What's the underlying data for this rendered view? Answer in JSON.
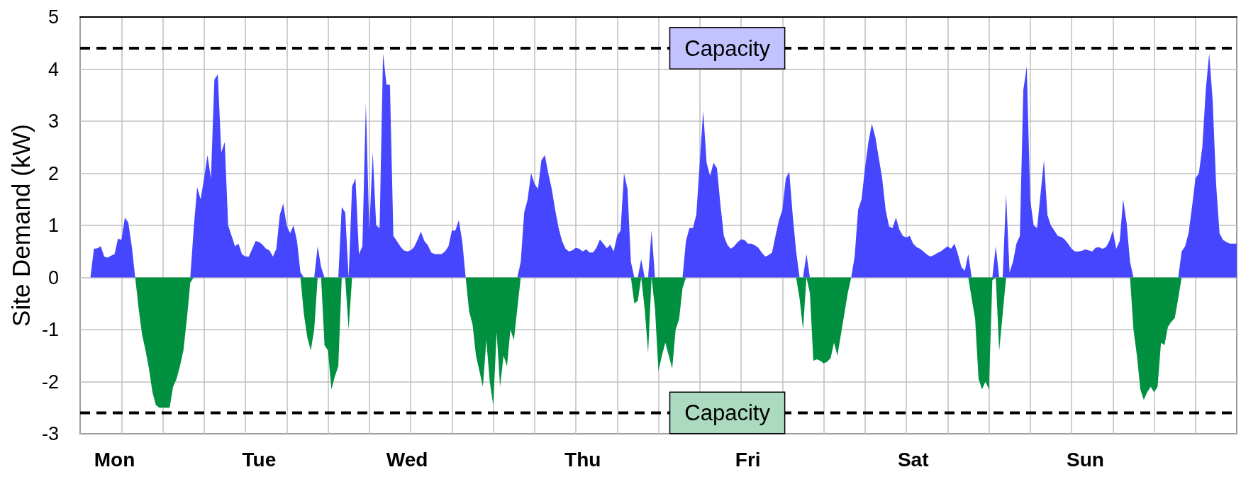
{
  "chart_data": {
    "type": "area",
    "ylabel": "Site Demand (kW)",
    "ylim": [
      -3,
      5
    ],
    "yticks": [
      -3,
      -2,
      -1,
      0,
      1,
      2,
      3,
      4,
      5
    ],
    "grid": true,
    "marker": "none",
    "categories": [
      null,
      null,
      null,
      null,
      null,
      null,
      null,
      null,
      null,
      null,
      "Mon",
      null,
      null,
      null,
      null,
      null,
      null,
      null,
      null,
      null,
      null,
      null,
      null,
      null,
      null,
      null,
      null,
      null,
      null,
      null,
      null,
      null,
      null,
      null,
      null,
      null,
      null,
      null,
      null,
      null,
      null,
      null,
      null,
      null,
      null,
      null,
      null,
      null,
      null,
      null,
      null,
      null,
      "Tue",
      null,
      null,
      null,
      null,
      null,
      null,
      null,
      null,
      null,
      null,
      null,
      null,
      null,
      null,
      null,
      null,
      null,
      null,
      null,
      null,
      null,
      null,
      null,
      null,
      null,
      null,
      null,
      null,
      null,
      null,
      null,
      null,
      null,
      null,
      null,
      null,
      null,
      null,
      null,
      null,
      null,
      null,
      "Wed",
      null,
      null,
      null,
      null,
      null,
      null,
      null,
      null,
      null,
      null,
      null,
      null,
      null,
      null,
      null,
      null,
      null,
      null,
      null,
      null,
      null,
      null,
      null,
      null,
      null,
      null,
      null,
      null,
      null,
      null,
      null,
      null,
      null,
      null,
      null,
      null,
      null,
      null,
      null,
      null,
      null,
      null,
      null,
      null,
      null,
      null,
      null,
      null,
      null,
      null,
      "Thu",
      null,
      null,
      null,
      null,
      null,
      null,
      null,
      null,
      null,
      null,
      null,
      null,
      null,
      null,
      null,
      null,
      null,
      null,
      null,
      null,
      null,
      null,
      null,
      null,
      null,
      null,
      null,
      null,
      null,
      null,
      null,
      null,
      null,
      null,
      null,
      null,
      null,
      null,
      null,
      null,
      null,
      null,
      null,
      null,
      null,
      null,
      null,
      "Fri",
      null,
      null,
      null,
      null,
      null,
      null,
      null,
      null,
      null,
      null,
      null,
      null,
      null,
      null,
      null,
      null,
      null,
      null,
      null,
      null,
      null,
      null,
      null,
      null,
      null,
      null,
      null,
      null,
      null,
      null,
      null,
      null,
      null,
      null,
      null,
      null,
      null,
      null,
      null,
      null,
      null,
      null,
      null,
      null,
      null,
      null,
      null,
      "Sat",
      null,
      null,
      null,
      null,
      null,
      null,
      null,
      null,
      null,
      null,
      null,
      null,
      null,
      null,
      null,
      null,
      null,
      null,
      null,
      null,
      null,
      null,
      null,
      null,
      null,
      null,
      null,
      null,
      null,
      null,
      null,
      null,
      null,
      null,
      null,
      null,
      null,
      null,
      null,
      null,
      null,
      null,
      null,
      null,
      null,
      null,
      null,
      null,
      null,
      "Sun",
      null,
      null,
      null,
      null,
      null,
      null,
      null,
      null,
      null,
      null,
      null,
      null,
      null,
      null,
      null,
      null,
      null,
      null,
      null,
      null,
      null,
      null,
      null,
      null,
      null,
      null,
      null,
      null,
      null,
      null,
      null,
      null,
      null,
      null,
      null,
      null,
      null,
      null,
      null,
      null,
      null,
      null,
      null,
      null
    ],
    "ref_lines": [
      {
        "axis": "y",
        "value": 4.4,
        "label": "Capacity",
        "color": "#000000",
        "line_style": "dashed"
      },
      {
        "axis": "y",
        "value": -2.6,
        "label": "Capacity",
        "color": "#000000",
        "line_style": "dashed"
      }
    ],
    "series": [
      {
        "color": "#4646ff",
        "values": [
          0,
          0,
          0,
          0,
          0.55,
          0.56,
          0.6,
          0.4,
          0.38,
          0.42,
          0.45,
          0.75,
          0.72,
          1.15,
          1.05,
          0.6,
          0,
          0,
          0,
          0,
          0,
          0,
          0,
          0,
          0,
          0,
          0,
          0,
          0,
          0,
          0,
          0,
          0,
          0.95,
          1.73,
          1.5,
          1.9,
          2.35,
          1.9,
          3.8,
          3.9,
          2.4,
          2.6,
          1.0,
          0.8,
          0.6,
          0.65,
          0.45,
          0.4,
          0.4,
          0.55,
          0.7,
          0.68,
          0.63,
          0.55,
          0.52,
          0.4,
          0.55,
          1.2,
          1.42,
          1.0,
          0.85,
          1.0,
          0.7,
          0.1,
          0,
          0,
          0,
          0,
          0.6,
          0.2,
          0,
          0,
          0,
          0,
          0,
          1.35,
          1.25,
          0,
          1.75,
          1.9,
          0.45,
          0.6,
          3.35,
          0.9,
          2.4,
          1.0,
          0.95,
          4.3,
          3.7,
          3.7,
          0.8,
          0.7,
          0.6,
          0.52,
          0.5,
          0.52,
          0.58,
          0.72,
          0.88,
          0.7,
          0.62,
          0.48,
          0.45,
          0.45,
          0.45,
          0.5,
          0.6,
          0.9,
          0.9,
          1.1,
          0.7,
          0,
          0,
          0,
          0,
          0,
          0,
          0,
          0,
          0,
          0,
          0,
          0,
          0,
          0,
          0,
          0,
          0.3,
          1.25,
          1.5,
          2.0,
          1.8,
          1.7,
          2.25,
          2.35,
          2.0,
          1.7,
          1.3,
          0.95,
          0.7,
          0.55,
          0.5,
          0.52,
          0.57,
          0.55,
          0.5,
          0.54,
          0.48,
          0.48,
          0.57,
          0.73,
          0.65,
          0.56,
          0.63,
          0.5,
          0.8,
          0.9,
          2.0,
          1.7,
          0.3,
          0,
          0,
          0.35,
          0,
          0,
          0.9,
          0,
          0,
          0,
          0,
          0,
          0,
          0,
          0,
          0,
          0.7,
          0.95,
          0.95,
          1.2,
          2.2,
          3.2,
          2.2,
          1.95,
          2.2,
          2.1,
          1.4,
          0.8,
          0.63,
          0.55,
          0.6,
          0.68,
          0.73,
          0.72,
          0.65,
          0.65,
          0.62,
          0.57,
          0.48,
          0.4,
          0.43,
          0.48,
          0.8,
          1.1,
          1.3,
          1.9,
          2.03,
          1.2,
          0.5,
          0,
          0,
          0.45,
          0,
          0,
          0,
          0,
          0,
          0,
          0,
          0,
          0,
          0,
          0,
          0,
          0,
          0.4,
          1.3,
          1.5,
          2.1,
          2.6,
          2.95,
          2.7,
          2.3,
          1.9,
          1.3,
          0.98,
          0.95,
          1.15,
          0.92,
          0.8,
          0.77,
          0.8,
          0.65,
          0.58,
          0.55,
          0.5,
          0.44,
          0.4,
          0.43,
          0.47,
          0.5,
          0.55,
          0.6,
          0.55,
          0.65,
          0.45,
          0.2,
          0.13,
          0.45,
          0,
          0,
          0,
          0,
          0,
          0,
          0,
          0.6,
          0,
          0,
          1.6,
          0.1,
          0.3,
          0.65,
          0.8,
          3.6,
          4.05,
          1.5,
          1.0,
          0.95,
          1.6,
          2.25,
          1.2,
          1.0,
          0.9,
          0.8,
          0.78,
          0.73,
          0.65,
          0.55,
          0.5,
          0.5,
          0.51,
          0.54,
          0.52,
          0.5,
          0.57,
          0.58,
          0.55,
          0.58,
          0.7,
          0.9,
          0.55,
          0.7,
          1.5,
          1.05,
          0.3,
          0,
          0,
          0,
          0,
          0,
          0,
          0,
          0,
          0,
          0,
          0,
          0,
          0,
          0,
          0.5,
          0.6,
          0.85,
          1.35,
          1.9,
          2.0,
          2.5,
          3.6,
          4.3,
          3.4,
          1.8,
          0.85,
          0.72,
          0.68,
          0.65,
          0.65,
          0.65
        ]
      },
      {
        "color": "#009040",
        "values": [
          0,
          0,
          0,
          0,
          0,
          0,
          0,
          0,
          0,
          0,
          0,
          0,
          0,
          0,
          0,
          0,
          0,
          -0.6,
          -1.1,
          -1.4,
          -1.75,
          -2.2,
          -2.45,
          -2.5,
          -2.5,
          -2.5,
          -2.5,
          -2.1,
          -1.95,
          -1.7,
          -1.4,
          -0.8,
          -0.1,
          0,
          0,
          0,
          0,
          0,
          0,
          0,
          0,
          0,
          0,
          0,
          0,
          0,
          0,
          0,
          0,
          0,
          0,
          0,
          0,
          0,
          0,
          0,
          0,
          0,
          0,
          0,
          0,
          0,
          0,
          0,
          0,
          -0.7,
          -1.15,
          -1.4,
          -1.0,
          0,
          0,
          -1.3,
          -1.4,
          -2.15,
          -1.9,
          -1.7,
          0,
          0,
          -1.0,
          0,
          0,
          0,
          0,
          0,
          0,
          0,
          0,
          0,
          0,
          0,
          0,
          0,
          0,
          0,
          0,
          0,
          0,
          0,
          0,
          0,
          0,
          0,
          0,
          0,
          0,
          0,
          0,
          0,
          0,
          0,
          0,
          0,
          0,
          -0.65,
          -0.9,
          -1.5,
          -1.8,
          -2.1,
          -1.2,
          -2.0,
          -2.45,
          -1.05,
          -2.1,
          -1.5,
          -1.7,
          -1.0,
          -1.2,
          -0.6,
          0,
          0,
          0,
          0,
          0,
          0,
          0,
          0,
          0,
          0,
          0,
          0,
          0,
          0,
          0,
          0,
          0,
          0,
          0,
          0,
          0,
          0,
          0,
          0,
          0,
          0,
          0,
          0,
          0,
          0,
          0,
          0,
          0,
          -0.5,
          -0.45,
          0,
          -0.6,
          -1.45,
          0,
          -0.6,
          -1.8,
          -1.5,
          -1.25,
          -1.5,
          -1.75,
          -1.0,
          -0.8,
          -0.2,
          0,
          0,
          0,
          0,
          0,
          0,
          0,
          0,
          0,
          0,
          0,
          0,
          0,
          0,
          0,
          0,
          0,
          0,
          0,
          0,
          0,
          0,
          0,
          0,
          0,
          0,
          0,
          0,
          0,
          0,
          0,
          0,
          0,
          -0.4,
          -1.0,
          0,
          -0.3,
          -1.6,
          -1.57,
          -1.6,
          -1.65,
          -1.62,
          -1.55,
          -1.25,
          -1.5,
          -1.1,
          -0.7,
          -0.3,
          0,
          0,
          0,
          0,
          0,
          0,
          0,
          0,
          0,
          0,
          0,
          0,
          0,
          0,
          0,
          0,
          0,
          0,
          0,
          0,
          0,
          0,
          0,
          0,
          0,
          0,
          0,
          0,
          0,
          0,
          0,
          0,
          0,
          0,
          0,
          -0.4,
          -0.8,
          -1.95,
          -2.15,
          -2.0,
          -2.15,
          -0.05,
          0,
          -1.4,
          -0.7,
          0,
          0,
          0,
          0,
          0,
          0,
          0,
          0,
          0,
          0,
          0,
          0,
          0,
          0,
          0,
          0,
          0,
          0,
          0,
          0,
          0,
          0,
          0,
          0,
          0,
          0,
          0,
          0,
          0,
          0,
          0,
          0,
          0,
          0,
          0,
          0,
          0,
          -1.0,
          -1.5,
          -2.15,
          -2.35,
          -2.2,
          -2.1,
          -2.2,
          -2.1,
          -1.25,
          -1.3,
          -0.95,
          -0.85,
          -0.78,
          -0.4,
          0,
          0,
          0,
          0,
          0,
          0,
          0,
          0,
          0,
          0,
          0,
          0,
          0,
          0,
          0,
          0,
          0
        ]
      }
    ]
  }
}
